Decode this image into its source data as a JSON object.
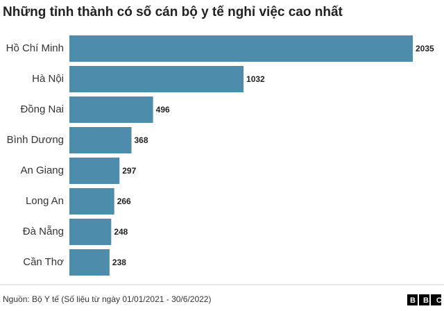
{
  "chart_data": {
    "type": "barh",
    "title": "Những tỉnh thành có số cán bộ y tế nghỉ việc cao nhất",
    "categories": [
      "Hồ Chí Minh",
      "Hà Nội",
      "Đồng Nai",
      "Bình Dương",
      "An Giang",
      "Long An",
      "Đà Nẵng",
      "Cần Thơ"
    ],
    "values": [
      2035,
      1032,
      496,
      368,
      297,
      266,
      248,
      238
    ],
    "color": "#4e8cab",
    "source": "Nguồn: Bộ Y tế (Số liệu từ ngày 01/01/2021 - 30/6/2022)",
    "logo": "BBC"
  }
}
